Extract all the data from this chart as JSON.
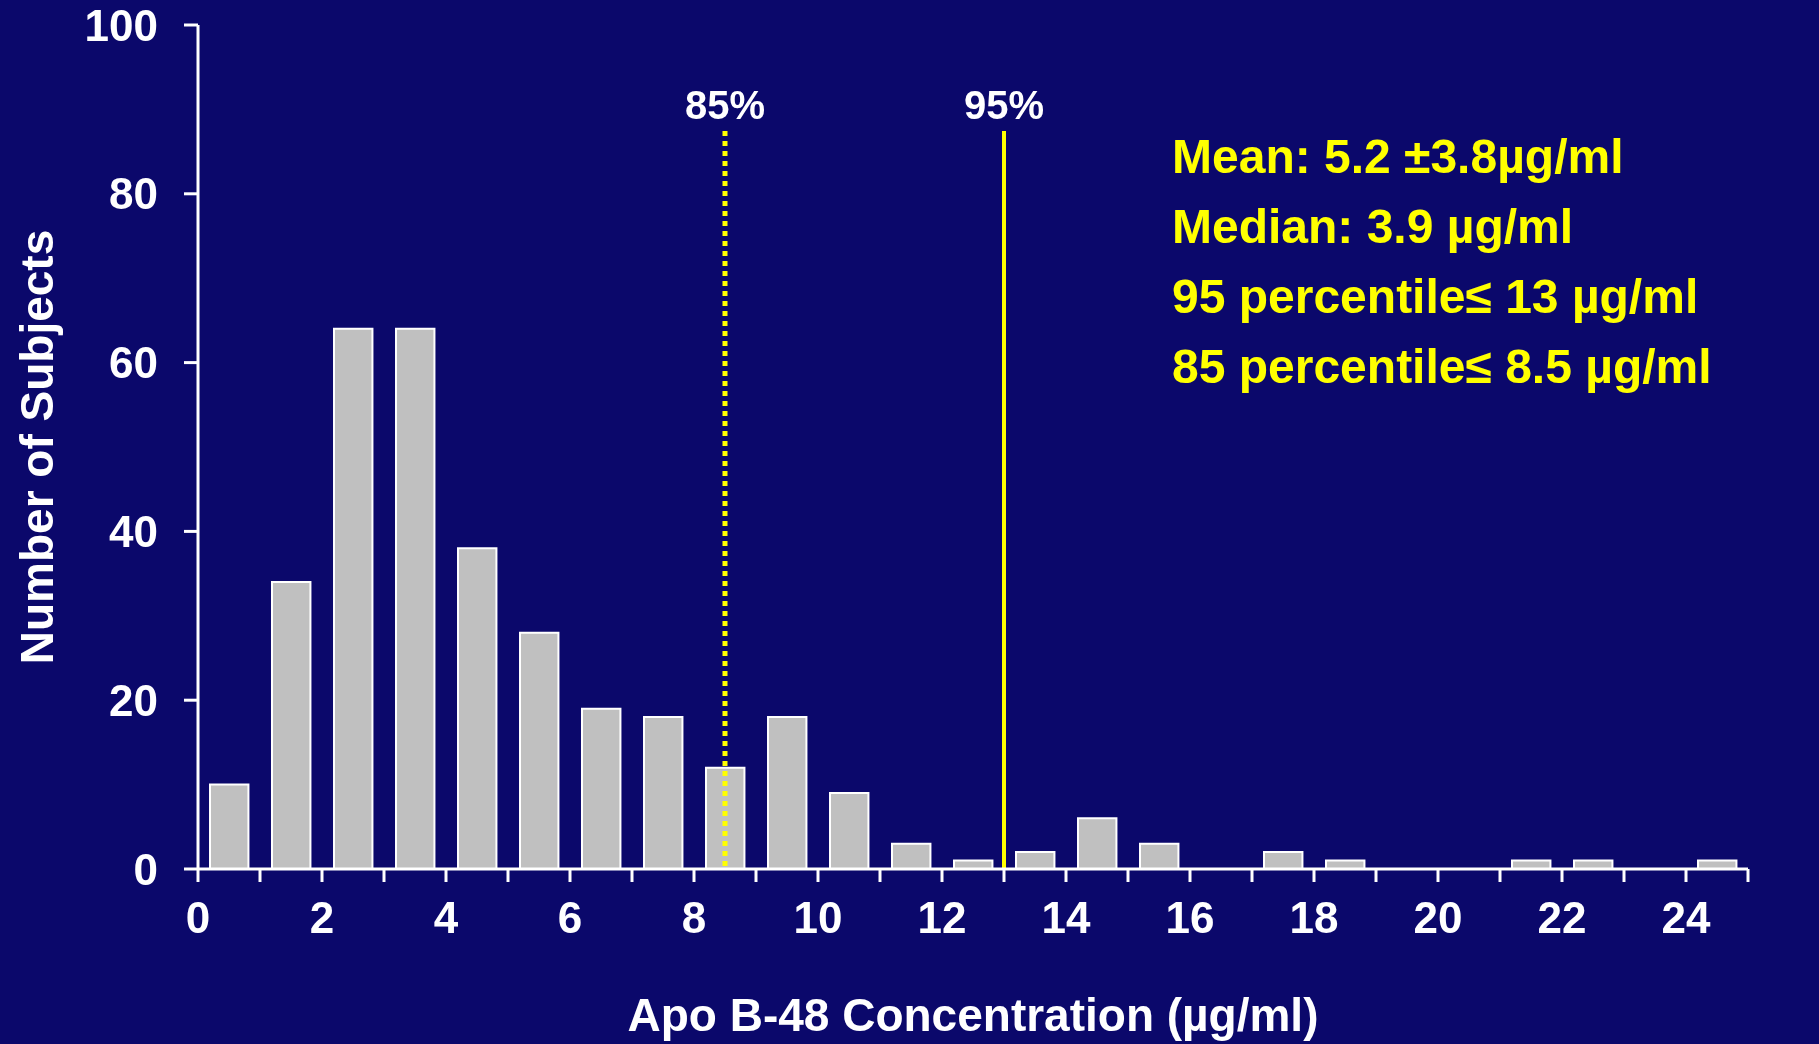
{
  "chart_data": {
    "type": "histogram",
    "xlabel": "Apo B-48 Concentration (µg/ml)",
    "ylabel": "Number of Subjects",
    "annotations": [
      "85%",
      "95%",
      "Mean: 5.2 ±3.8µg/ml",
      "Median: 3.9 µg/ml",
      "95 percentile≤ 13 µg/ml",
      "85 percentile≤ 8.5 µg/ml"
    ],
    "bins": [
      0,
      1,
      2,
      3,
      4,
      5,
      6,
      7,
      8,
      9,
      10,
      11,
      12,
      13,
      14,
      15,
      16,
      17,
      18,
      19,
      20,
      21,
      22,
      23,
      24,
      25
    ],
    "values": [
      10,
      34,
      64,
      64,
      38,
      28,
      19,
      18,
      12,
      18,
      9,
      3,
      1,
      2,
      6,
      3,
      0,
      2,
      1,
      0,
      0,
      1,
      1,
      0,
      1
    ],
    "color": "#c0c0c0",
    "xlim": [
      0,
      25
    ],
    "xticks": [
      0,
      {
        "value": 1,
        "label": null
      },
      2,
      {
        "value": 3,
        "label": null
      },
      4,
      {
        "value": 5,
        "label": null
      },
      6,
      {
        "value": 7,
        "label": null
      },
      8,
      {
        "value": 9,
        "label": null
      },
      10,
      {
        "value": 11,
        "label": null
      },
      12,
      {
        "value": 13,
        "label": null
      },
      14,
      {
        "value": 15,
        "label": null
      },
      16,
      {
        "value": 17,
        "label": null
      },
      18,
      {
        "value": 19,
        "label": null
      },
      20,
      {
        "value": 21,
        "label": null
      },
      22,
      {
        "value": 23,
        "label": null
      },
      24,
      {
        "value": 25,
        "label": null
      }
    ],
    "ylim": [
      0,
      100
    ],
    "yticks": [
      0,
      20,
      40,
      60,
      80,
      100
    ],
    "ref_lines": [
      {
        "axis": "x",
        "value": 8.5,
        "color": "#ffff00",
        "line_style": "dotted"
      },
      {
        "axis": "x",
        "value": 13,
        "color": "#ffff00",
        "line_style": "solid"
      }
    ]
  }
}
